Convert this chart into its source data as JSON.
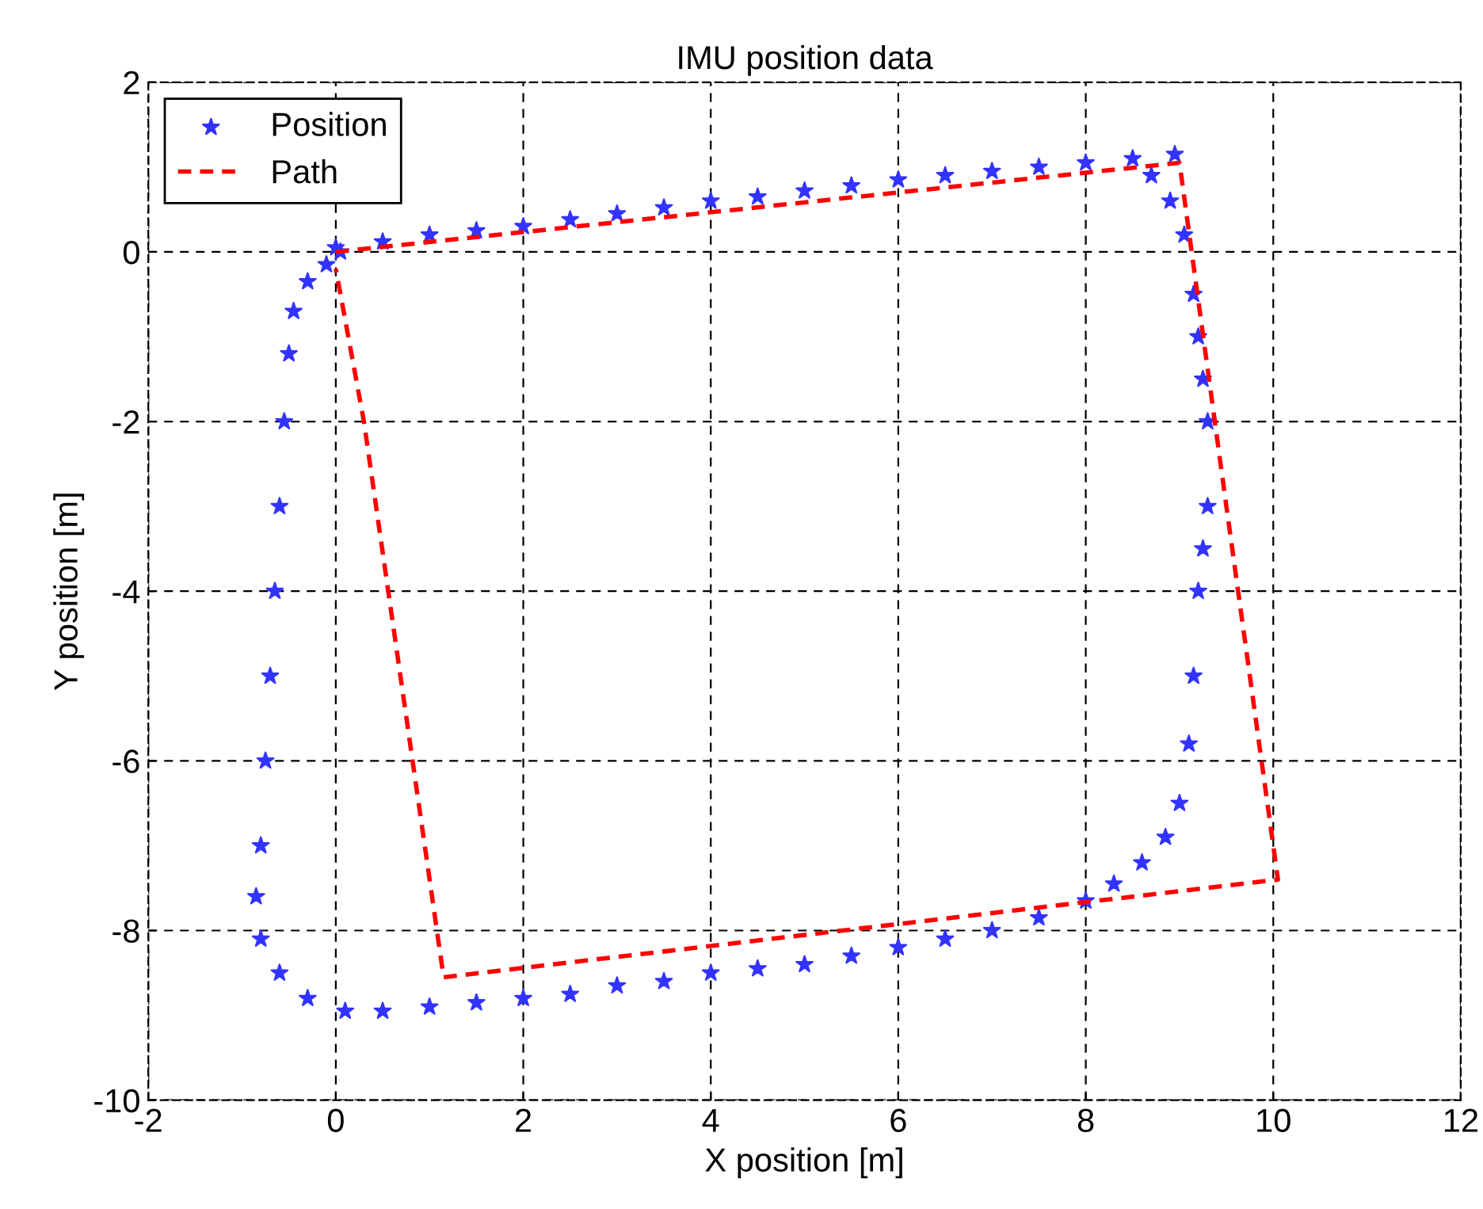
{
  "chart_data": {
    "type": "line",
    "title": "IMU position data",
    "xlabel": "X position [m]",
    "ylabel": "Y position [m]",
    "xlim": [
      -2,
      12
    ],
    "ylim": [
      -10,
      2
    ],
    "xticks": [
      -2,
      0,
      2,
      4,
      6,
      8,
      10,
      12
    ],
    "yticks": [
      -10,
      -8,
      -6,
      -4,
      -2,
      0,
      2
    ],
    "grid": true,
    "legend": "top left",
    "series": [
      {
        "name": "Position",
        "type": "scatter",
        "marker": "star",
        "color": "#3333ff",
        "x": [
          0,
          0.5,
          1,
          1.5,
          2,
          2.5,
          3,
          3.5,
          4,
          4.5,
          5,
          5.5,
          6,
          6.5,
          7,
          7.5,
          8,
          8.5,
          8.95,
          8.7,
          8.9,
          9.05,
          9.15,
          9.2,
          9.25,
          9.3,
          9.3,
          9.25,
          9.2,
          9.15,
          9.1,
          9.0,
          8.85,
          8.6,
          8.3,
          8,
          7.5,
          7,
          6.5,
          6,
          5.5,
          5,
          4.5,
          4,
          3.5,
          3,
          2.5,
          2,
          1.5,
          1,
          0.5,
          0.1,
          -0.3,
          -0.6,
          -0.8,
          -0.85,
          -0.8,
          -0.75,
          -0.7,
          -0.65,
          -0.6,
          -0.55,
          -0.5,
          -0.45,
          -0.3,
          -0.1,
          0.05
        ],
        "values": [
          0.05,
          0.12,
          0.2,
          0.25,
          0.3,
          0.38,
          0.45,
          0.52,
          0.6,
          0.65,
          0.72,
          0.78,
          0.85,
          0.9,
          0.95,
          1.0,
          1.05,
          1.1,
          1.15,
          0.9,
          0.6,
          0.2,
          -0.5,
          -1.0,
          -1.5,
          -2.0,
          -3.0,
          -3.5,
          -4.0,
          -5.0,
          -5.8,
          -6.5,
          -6.9,
          -7.2,
          -7.45,
          -7.65,
          -7.85,
          -8.0,
          -8.1,
          -8.2,
          -8.3,
          -8.4,
          -8.45,
          -8.5,
          -8.6,
          -8.65,
          -8.75,
          -8.8,
          -8.85,
          -8.9,
          -8.95,
          -8.95,
          -8.8,
          -8.5,
          -8.1,
          -7.6,
          -7.0,
          -6.0,
          -5.0,
          -4.0,
          -3.0,
          -2.0,
          -1.2,
          -0.7,
          -0.35,
          -0.15,
          0.0
        ]
      },
      {
        "name": "Path",
        "line_style": "dashed",
        "marker": "none",
        "color": "#ff0000",
        "x": [
          0,
          9.0,
          9.5,
          10.05,
          1.15,
          0.3,
          0
        ],
        "values": [
          0,
          1.05,
          -3.0,
          -7.4,
          -8.55,
          -2.0,
          -0.2
        ]
      }
    ]
  }
}
